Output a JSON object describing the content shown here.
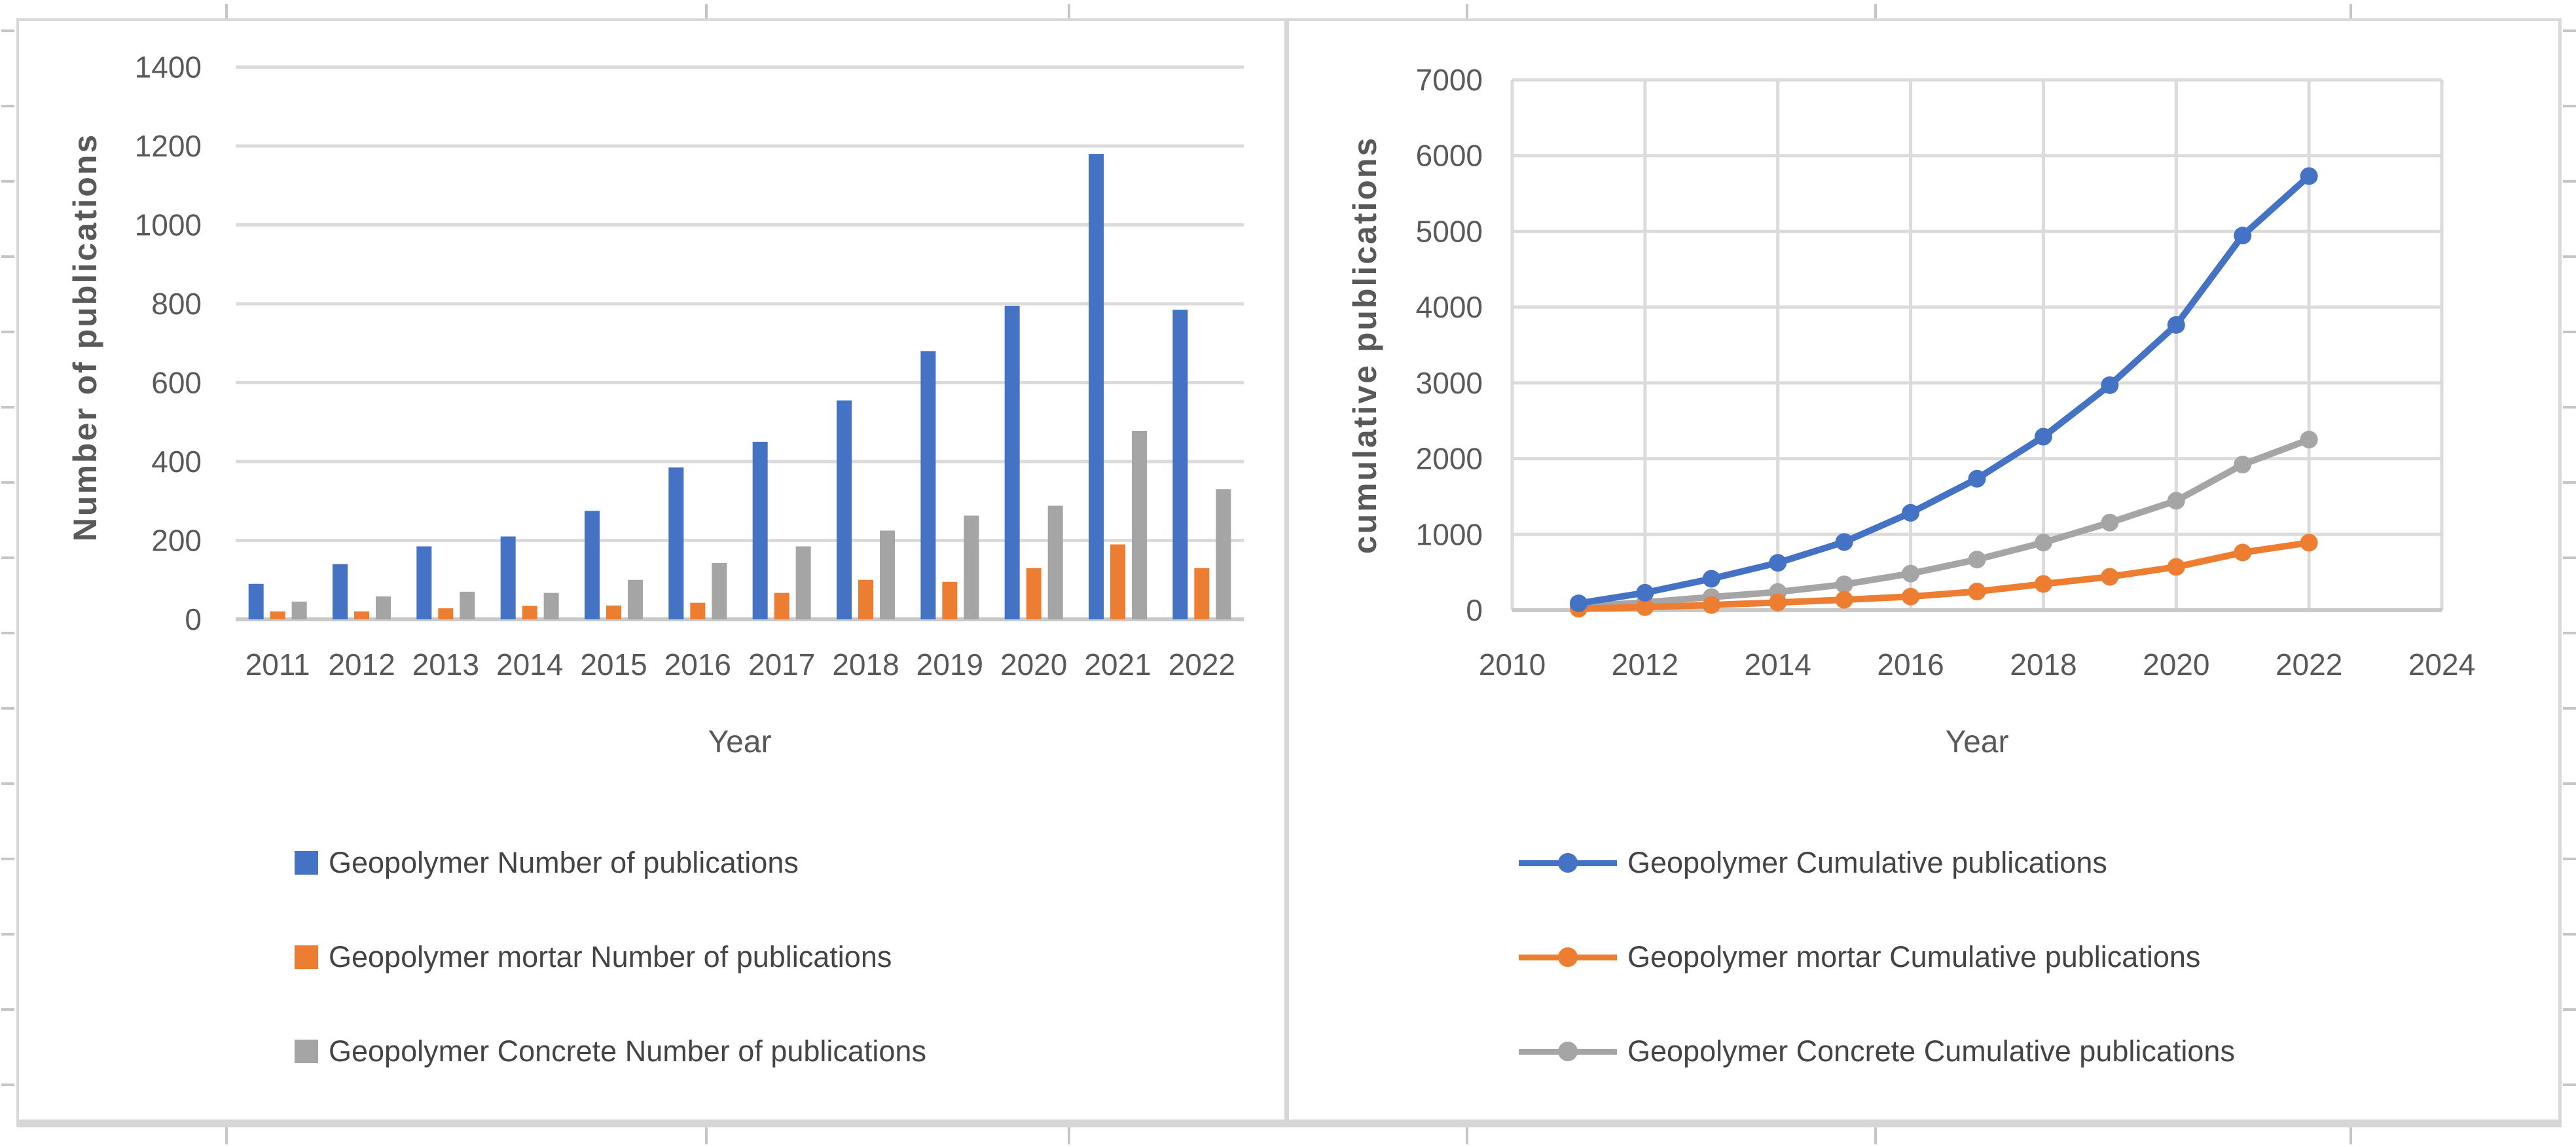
{
  "colors": {
    "geopolymer_blue": "#4472C4",
    "mortar_orange": "#ED7D31",
    "concrete_gray": "#A5A5A5",
    "gridline": "#dbdbdb",
    "axis_line": "#c9c9c9",
    "tick_text": "#595959",
    "frame": "#d9d9d9"
  },
  "chart_data": [
    {
      "type": "bar",
      "title": "",
      "xlabel": "Year",
      "ylabel": "Number of publications",
      "categories": [
        "2011",
        "2012",
        "2013",
        "2014",
        "2015",
        "2016",
        "2017",
        "2018",
        "2019",
        "2020",
        "2021",
        "2022"
      ],
      "ylim": [
        0,
        1400
      ],
      "ytick_step": 200,
      "grid": true,
      "legend_position": "bottom-left",
      "series": [
        {
          "name": "Geopolymer Number of publications",
          "color": "#4472C4",
          "values": [
            90,
            140,
            185,
            210,
            275,
            385,
            450,
            555,
            680,
            795,
            1180,
            785
          ]
        },
        {
          "name": "Geopolymer mortar Number of publications",
          "color": "#ED7D31",
          "values": [
            20,
            20,
            28,
            34,
            35,
            42,
            67,
            100,
            95,
            130,
            190,
            130
          ]
        },
        {
          "name": "Geopolymer Concrete Number of publications",
          "color": "#A5A5A5",
          "values": [
            45,
            58,
            70,
            67,
            100,
            143,
            185,
            225,
            263,
            288,
            478,
            330
          ]
        }
      ]
    },
    {
      "type": "line",
      "title": "",
      "xlabel": "Year",
      "ylabel": "cumulative publications",
      "x": [
        2011,
        2012,
        2013,
        2014,
        2015,
        2016,
        2017,
        2018,
        2019,
        2020,
        2021,
        2022
      ],
      "xlim": [
        2010,
        2024
      ],
      "xtick_step": 2,
      "xticks": [
        "2010",
        "2012",
        "2014",
        "2016",
        "2018",
        "2020",
        "2022",
        "2024"
      ],
      "ylim": [
        0,
        7000
      ],
      "ytick_step": 1000,
      "grid": true,
      "legend_position": "bottom-left",
      "series": [
        {
          "name": "Geopolymer Cumulative publications",
          "color": "#4472C4",
          "values": [
            90,
            230,
            415,
            625,
            900,
            1285,
            1735,
            2290,
            2970,
            3765,
            4945,
            5730
          ]
        },
        {
          "name": "Geopolymer mortar Cumulative publications",
          "color": "#ED7D31",
          "values": [
            20,
            40,
            68,
            102,
            137,
            179,
            246,
            346,
            441,
            571,
            761,
            891
          ]
        },
        {
          "name": "Geopolymer Concrete Cumulative publications",
          "color": "#A5A5A5",
          "values": [
            45,
            103,
            173,
            240,
            340,
            483,
            668,
            893,
            1156,
            1444,
            1922,
            2252
          ]
        }
      ]
    }
  ]
}
